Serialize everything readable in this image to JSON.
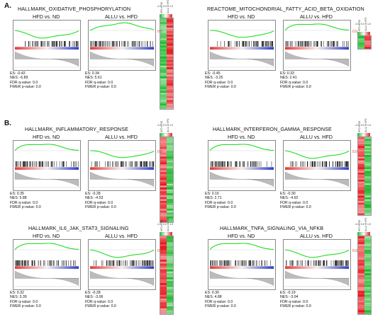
{
  "section_a": "A.",
  "section_b": "B.",
  "panels": [
    {
      "id": "oxphos",
      "title": "HALLMARK_OXIDATIVE_PHOSPHORYLATION",
      "left": {
        "cmp": "HFD vs. ND",
        "es": "ES: -0.42",
        "nes": "NES: -6.89",
        "fdr": "FDR q-value: 0.0",
        "fwer": "FWER p-value: 0.0"
      },
      "right": {
        "cmp": "ALLU vs. HFD",
        "es": "ES: 0.34",
        "nes": "NES: 5.61",
        "fdr": "FDR q-value: 0.0",
        "fwer": "FWER p-value: 0.0"
      }
    },
    {
      "id": "fao",
      "title": "REACTOME_MITOCHONDRIAL_FATTY_ACID_BETA_OXIDATION",
      "left": {
        "cmp": "HFD vs. ND",
        "es": "ES: -0.45",
        "nes": "NES: -3.25",
        "fdr": "FDR q-value: 0.0",
        "fwer": "FWER p-value: 0.0"
      },
      "right": {
        "cmp": "ALLU vs. HFD",
        "es": "ES: 0.33",
        "nes": "NES: 2.41",
        "fdr": "FDR q-value: 0.0",
        "fwer": "FWER p-value: 0.0"
      }
    },
    {
      "id": "inflam",
      "title": "HALLMARK_INFLAMMATORY_RESPONSE",
      "left": {
        "cmp": "HFD vs. ND",
        "es": "ES: 0.35",
        "nes": "NES: 5.88",
        "fdr": "FDR q-value: 0.0",
        "fwer": "FWER p-value: 0.0"
      },
      "right": {
        "cmp": "ALLU vs. HFD",
        "es": "ES: -0.28",
        "nes": "NES: -4.53",
        "fdr": "FDR q-value: 0.0",
        "fwer": "FWER p-value: 0.0"
      }
    },
    {
      "id": "ifng",
      "title": "HALLMARK_INTERFERON_GAMMA_RESPONSE",
      "left": {
        "cmp": "HFD vs. ND",
        "es": "ES: 0.16",
        "nes": "NES: 2.71",
        "fdr": "FDR q-value: 0.0",
        "fwer": "FWER p-value: 0.0"
      },
      "right": {
        "cmp": "ALLU vs. HFD",
        "es": "ES: -0.30",
        "nes": "NES: -4.92",
        "fdr": "FDR q-value: 0.0",
        "fwer": "FWER p-value: 0.0"
      }
    },
    {
      "id": "il6",
      "title": "HALLMARK_IL6_JAK_STAT3_SIGNALING",
      "left": {
        "cmp": "HFD vs. ND",
        "es": "ES: 0.32",
        "nes": "NES: 3.39",
        "fdr": "FDR q-value: 0.0",
        "fwer": "FWER p-value: 0.0"
      },
      "right": {
        "cmp": "ALLU vs. HFD",
        "es": "ES: -0.28",
        "nes": "NES: -3.06",
        "fdr": "FDR q-value: 0.0",
        "fwer": "FWER p-value: 0.0"
      }
    },
    {
      "id": "tnfa",
      "title": "HALLMARK_TNFA_SIGNALING_VIA_NFKB",
      "left": {
        "cmp": "HFD vs. ND",
        "es": "ES: 0.30",
        "nes": "NES: 4.88",
        "fdr": "FDR q-value: 0.0",
        "fwer": "FWER p-value: 0.0"
      },
      "right": {
        "cmp": "ALLU vs. HFD",
        "es": "ES: -0.19",
        "nes": "NES: -3.04",
        "fdr": "FDR q-value: 0.0",
        "fwer": "FWER p-value: 0.0"
      }
    }
  ],
  "heatmap": {
    "scale_labels": [
      "-1.0",
      "0.0",
      "1.0"
    ],
    "col_headers": [
      "HFD vs ND",
      "ALLU vs HFD"
    ],
    "zero_label": "0.0",
    "colors": {
      "up": "#e8161b",
      "down": "#19b82a",
      "mid": "#ffffff",
      "curve": "#22dd22",
      "zero": "#e03030"
    }
  }
}
